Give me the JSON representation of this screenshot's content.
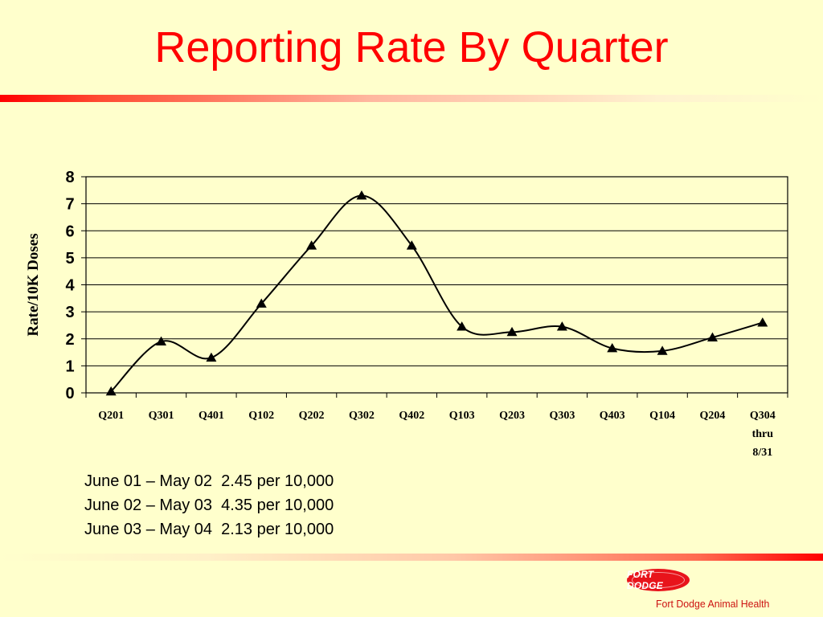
{
  "slide": {
    "title": "Reporting Rate By Quarter",
    "notes": [
      "June 01 – May 02  2.45 per 10,000",
      "June 02 – May 03  4.35 per 10,000",
      "June 03 – May 04  2.13 per 10,000"
    ],
    "logo_text": "FORT DODGE",
    "company": "Fort Dodge Animal Health"
  },
  "chart_data": {
    "type": "line",
    "title": "",
    "xlabel": "",
    "ylabel": "Rate/10K Doses",
    "ylim": [
      0,
      8
    ],
    "yticks": [
      0,
      1,
      2,
      3,
      4,
      5,
      6,
      7,
      8
    ],
    "grid": true,
    "marker": "triangle",
    "smooth": true,
    "categories": [
      "Q201",
      "Q301",
      "Q401",
      "Q102",
      "Q202",
      "Q302",
      "Q402",
      "Q103",
      "Q203",
      "Q303",
      "Q403",
      "Q104",
      "Q204",
      "Q304\nthru\n8/31"
    ],
    "series": [
      {
        "name": "",
        "color": "#000000",
        "values": [
          0.05,
          1.9,
          1.3,
          3.3,
          5.45,
          7.3,
          5.45,
          2.45,
          2.25,
          2.45,
          1.65,
          1.55,
          2.05,
          2.6
        ]
      }
    ]
  }
}
